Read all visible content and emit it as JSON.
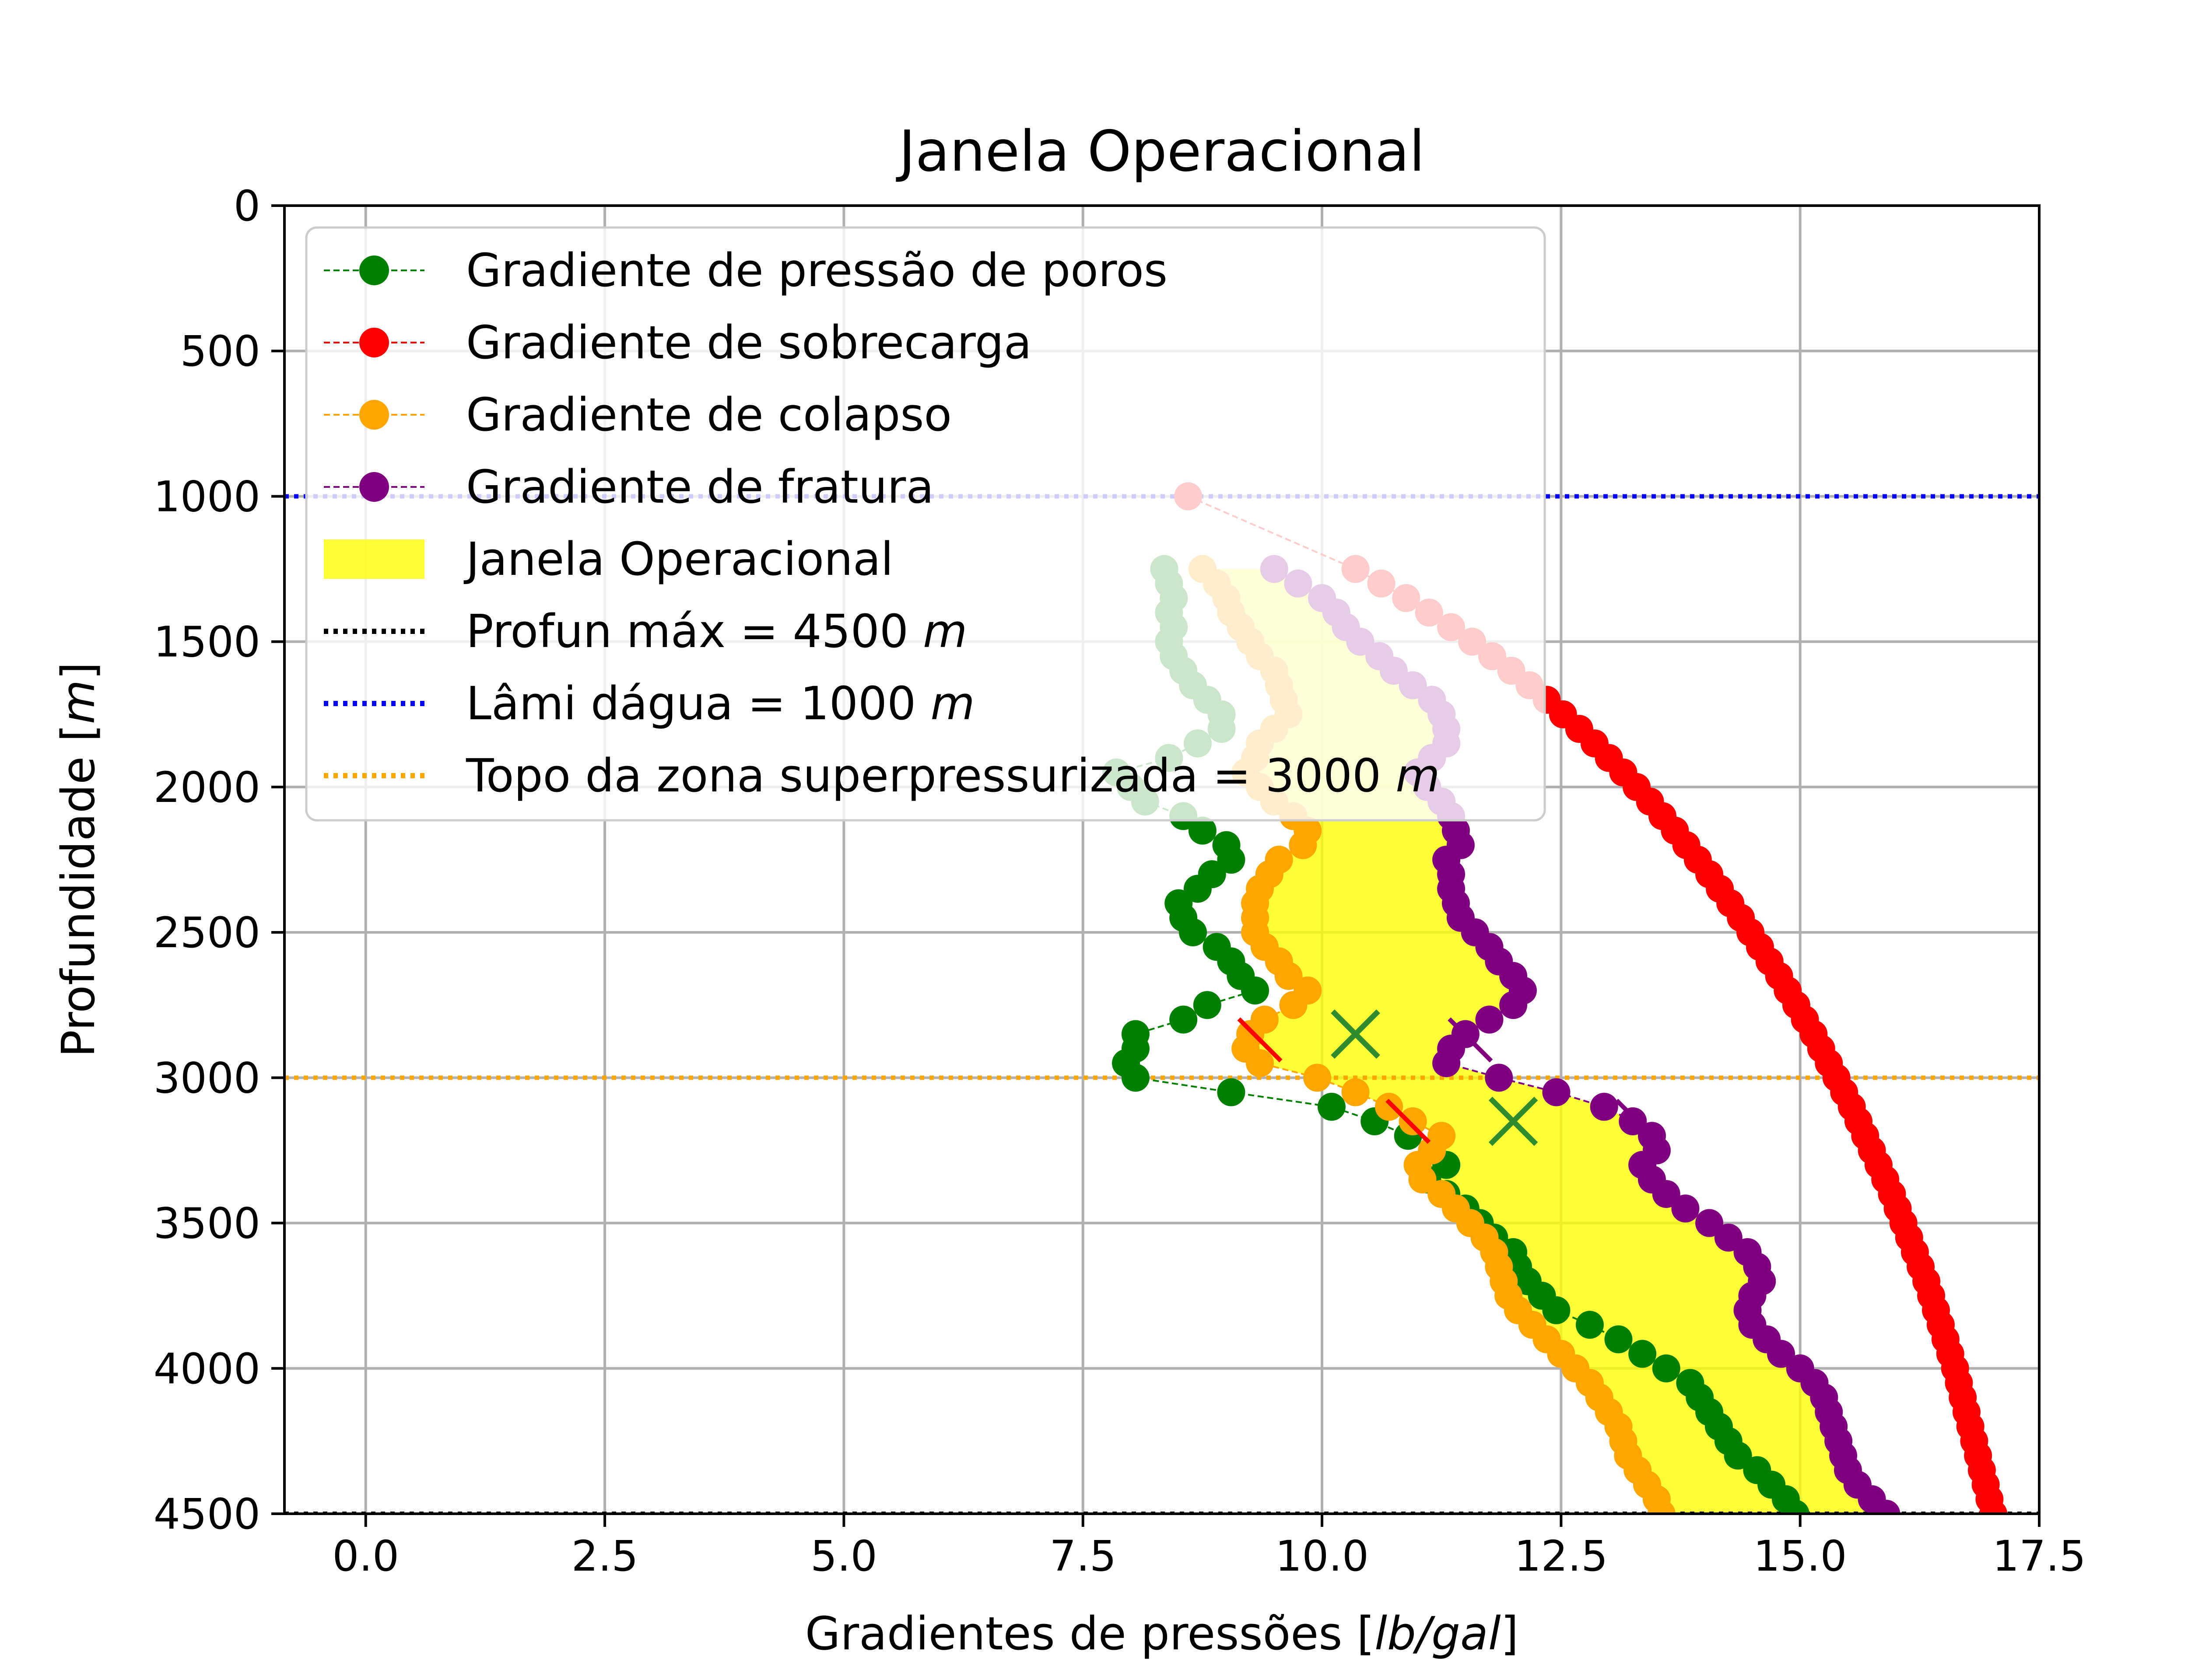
{
  "chart_data": {
    "type": "line",
    "title": "Janela Operacional",
    "xlabel_parts": [
      "Gradientes de pressões [",
      "lb/gal",
      "]"
    ],
    "ylabel_parts": [
      "Profundidade [",
      "m",
      "]"
    ],
    "xlim": [
      -0.85,
      17.5
    ],
    "ylim": [
      4500,
      0
    ],
    "y_inverted": true,
    "xticks": [
      {
        "value": 0,
        "label": "0.0"
      },
      {
        "value": 2.5,
        "label": "2.5"
      },
      {
        "value": 5,
        "label": "5.0"
      },
      {
        "value": 7.5,
        "label": "7.5"
      },
      {
        "value": 10,
        "label": "10.0"
      },
      {
        "value": 12.5,
        "label": "12.5"
      },
      {
        "value": 15,
        "label": "15.0"
      },
      {
        "value": 17.5,
        "label": "17.5"
      }
    ],
    "yticks": [
      {
        "value": 0,
        "label": "0"
      },
      {
        "value": 500,
        "label": "500"
      },
      {
        "value": 1000,
        "label": "1000"
      },
      {
        "value": 1500,
        "label": "1500"
      },
      {
        "value": 2000,
        "label": "2000"
      },
      {
        "value": 2500,
        "label": "2500"
      },
      {
        "value": 3000,
        "label": "3000"
      },
      {
        "value": 3500,
        "label": "3500"
      },
      {
        "value": 4000,
        "label": "4000"
      },
      {
        "value": 4500,
        "label": "4500"
      }
    ],
    "grid": true,
    "legend_position": "upper-left",
    "series": [
      {
        "name": "Gradiente de pressão de poros",
        "color": "#008000",
        "points": [
          [
            8.35,
            1250
          ],
          [
            8.4,
            1300
          ],
          [
            8.45,
            1350
          ],
          [
            8.4,
            1400
          ],
          [
            8.45,
            1450
          ],
          [
            8.4,
            1500
          ],
          [
            8.45,
            1550
          ],
          [
            8.55,
            1600
          ],
          [
            8.65,
            1650
          ],
          [
            8.8,
            1700
          ],
          [
            8.95,
            1750
          ],
          [
            8.95,
            1800
          ],
          [
            8.7,
            1850
          ],
          [
            8.4,
            1900
          ],
          [
            7.85,
            1950
          ],
          [
            8.0,
            2000
          ],
          [
            8.15,
            2050
          ],
          [
            8.55,
            2100
          ],
          [
            8.75,
            2150
          ],
          [
            9.0,
            2200
          ],
          [
            9.05,
            2250
          ],
          [
            8.85,
            2300
          ],
          [
            8.7,
            2350
          ],
          [
            8.5,
            2400
          ],
          [
            8.55,
            2450
          ],
          [
            8.65,
            2500
          ],
          [
            8.9,
            2550
          ],
          [
            9.05,
            2600
          ],
          [
            9.15,
            2650
          ],
          [
            9.3,
            2700
          ],
          [
            8.8,
            2750
          ],
          [
            8.55,
            2800
          ],
          [
            8.05,
            2850
          ],
          [
            8.05,
            2900
          ],
          [
            7.95,
            2950
          ],
          [
            8.05,
            3000
          ],
          [
            9.05,
            3050
          ],
          [
            10.1,
            3100
          ],
          [
            10.55,
            3150
          ],
          [
            10.9,
            3200
          ],
          [
            11.15,
            3250
          ],
          [
            11.3,
            3300
          ],
          [
            11.1,
            3350
          ],
          [
            11.3,
            3400
          ],
          [
            11.5,
            3450
          ],
          [
            11.65,
            3500
          ],
          [
            11.8,
            3550
          ],
          [
            12.0,
            3600
          ],
          [
            12.05,
            3650
          ],
          [
            12.15,
            3700
          ],
          [
            12.3,
            3750
          ],
          [
            12.45,
            3800
          ],
          [
            12.8,
            3850
          ],
          [
            13.1,
            3900
          ],
          [
            13.35,
            3950
          ],
          [
            13.6,
            4000
          ],
          [
            13.85,
            4050
          ],
          [
            13.95,
            4100
          ],
          [
            14.05,
            4150
          ],
          [
            14.15,
            4200
          ],
          [
            14.25,
            4250
          ],
          [
            14.35,
            4300
          ],
          [
            14.55,
            4350
          ],
          [
            14.7,
            4400
          ],
          [
            14.85,
            4450
          ],
          [
            14.95,
            4500
          ]
        ]
      },
      {
        "name": "Gradiente de sobrecarga",
        "color": "#ff0000",
        "points": [
          [
            8.6,
            1000
          ],
          [
            10.35,
            1250
          ],
          [
            10.62,
            1300
          ],
          [
            10.88,
            1350
          ],
          [
            11.12,
            1400
          ],
          [
            11.35,
            1450
          ],
          [
            11.57,
            1500
          ],
          [
            11.78,
            1550
          ],
          [
            11.98,
            1600
          ],
          [
            12.17,
            1650
          ],
          [
            12.35,
            1700
          ],
          [
            12.52,
            1750
          ],
          [
            12.69,
            1800
          ],
          [
            12.85,
            1850
          ],
          [
            13.0,
            1900
          ],
          [
            13.15,
            1950
          ],
          [
            13.29,
            2000
          ],
          [
            13.43,
            2050
          ],
          [
            13.56,
            2100
          ],
          [
            13.69,
            2150
          ],
          [
            13.81,
            2200
          ],
          [
            13.93,
            2250
          ],
          [
            14.05,
            2300
          ],
          [
            14.16,
            2350
          ],
          [
            14.27,
            2400
          ],
          [
            14.38,
            2450
          ],
          [
            14.48,
            2500
          ],
          [
            14.58,
            2550
          ],
          [
            14.68,
            2600
          ],
          [
            14.78,
            2650
          ],
          [
            14.87,
            2700
          ],
          [
            14.96,
            2750
          ],
          [
            15.05,
            2800
          ],
          [
            15.14,
            2850
          ],
          [
            15.22,
            2900
          ],
          [
            15.3,
            2950
          ],
          [
            15.38,
            3000
          ],
          [
            15.46,
            3050
          ],
          [
            15.54,
            3100
          ],
          [
            15.61,
            3150
          ],
          [
            15.68,
            3200
          ],
          [
            15.75,
            3250
          ],
          [
            15.82,
            3300
          ],
          [
            15.89,
            3350
          ],
          [
            15.96,
            3400
          ],
          [
            16.02,
            3450
          ],
          [
            16.08,
            3500
          ],
          [
            16.14,
            3550
          ],
          [
            16.2,
            3600
          ],
          [
            16.26,
            3650
          ],
          [
            16.32,
            3700
          ],
          [
            16.37,
            3750
          ],
          [
            16.42,
            3800
          ],
          [
            16.47,
            3850
          ],
          [
            16.52,
            3900
          ],
          [
            16.57,
            3950
          ],
          [
            16.62,
            4000
          ],
          [
            16.66,
            4050
          ],
          [
            16.7,
            4100
          ],
          [
            16.74,
            4150
          ],
          [
            16.78,
            4200
          ],
          [
            16.82,
            4250
          ],
          [
            16.86,
            4300
          ],
          [
            16.9,
            4350
          ],
          [
            16.94,
            4400
          ],
          [
            16.98,
            4450
          ],
          [
            17.02,
            4500
          ]
        ]
      },
      {
        "name": "Gradiente de colapso",
        "color": "#ffa500",
        "points": [
          [
            8.75,
            1250
          ],
          [
            8.9,
            1300
          ],
          [
            9.0,
            1350
          ],
          [
            9.05,
            1400
          ],
          [
            9.15,
            1450
          ],
          [
            9.25,
            1500
          ],
          [
            9.35,
            1550
          ],
          [
            9.5,
            1600
          ],
          [
            9.55,
            1650
          ],
          [
            9.6,
            1700
          ],
          [
            9.65,
            1750
          ],
          [
            9.5,
            1800
          ],
          [
            9.35,
            1850
          ],
          [
            9.3,
            1900
          ],
          [
            9.2,
            1950
          ],
          [
            9.35,
            2000
          ],
          [
            9.5,
            2050
          ],
          [
            9.7,
            2100
          ],
          [
            9.85,
            2150
          ],
          [
            9.8,
            2200
          ],
          [
            9.55,
            2250
          ],
          [
            9.45,
            2300
          ],
          [
            9.35,
            2350
          ],
          [
            9.3,
            2400
          ],
          [
            9.3,
            2450
          ],
          [
            9.3,
            2500
          ],
          [
            9.4,
            2550
          ],
          [
            9.55,
            2600
          ],
          [
            9.65,
            2650
          ],
          [
            9.85,
            2700
          ],
          [
            9.7,
            2750
          ],
          [
            9.4,
            2800
          ],
          [
            9.25,
            2850
          ],
          [
            9.2,
            2900
          ],
          [
            9.35,
            2950
          ],
          [
            9.95,
            3000
          ],
          [
            10.35,
            3050
          ],
          [
            10.7,
            3100
          ],
          [
            10.95,
            3150
          ],
          [
            11.25,
            3200
          ],
          [
            11.15,
            3250
          ],
          [
            11.0,
            3300
          ],
          [
            11.05,
            3350
          ],
          [
            11.25,
            3400
          ],
          [
            11.4,
            3450
          ],
          [
            11.55,
            3500
          ],
          [
            11.7,
            3550
          ],
          [
            11.8,
            3600
          ],
          [
            11.85,
            3650
          ],
          [
            11.9,
            3700
          ],
          [
            11.95,
            3750
          ],
          [
            12.05,
            3800
          ],
          [
            12.2,
            3850
          ],
          [
            12.35,
            3900
          ],
          [
            12.5,
            3950
          ],
          [
            12.65,
            4000
          ],
          [
            12.8,
            4050
          ],
          [
            12.9,
            4100
          ],
          [
            13.0,
            4150
          ],
          [
            13.1,
            4200
          ],
          [
            13.15,
            4250
          ],
          [
            13.2,
            4300
          ],
          [
            13.3,
            4350
          ],
          [
            13.4,
            4400
          ],
          [
            13.5,
            4450
          ],
          [
            13.55,
            4500
          ]
        ]
      },
      {
        "name": "Gradiente de fratura",
        "color": "#800080",
        "points": [
          [
            9.5,
            1250
          ],
          [
            9.75,
            1300
          ],
          [
            10.0,
            1350
          ],
          [
            10.15,
            1400
          ],
          [
            10.25,
            1450
          ],
          [
            10.4,
            1500
          ],
          [
            10.6,
            1550
          ],
          [
            10.75,
            1600
          ],
          [
            10.95,
            1650
          ],
          [
            11.15,
            1700
          ],
          [
            11.25,
            1750
          ],
          [
            11.3,
            1800
          ],
          [
            11.3,
            1850
          ],
          [
            11.15,
            1900
          ],
          [
            11.0,
            1950
          ],
          [
            11.1,
            2000
          ],
          [
            11.25,
            2050
          ],
          [
            11.35,
            2100
          ],
          [
            11.4,
            2150
          ],
          [
            11.45,
            2200
          ],
          [
            11.3,
            2250
          ],
          [
            11.35,
            2300
          ],
          [
            11.35,
            2350
          ],
          [
            11.4,
            2400
          ],
          [
            11.45,
            2450
          ],
          [
            11.6,
            2500
          ],
          [
            11.75,
            2550
          ],
          [
            11.85,
            2600
          ],
          [
            12.0,
            2650
          ],
          [
            12.1,
            2700
          ],
          [
            12.0,
            2750
          ],
          [
            11.75,
            2800
          ],
          [
            11.5,
            2850
          ],
          [
            11.35,
            2900
          ],
          [
            11.3,
            2950
          ],
          [
            11.85,
            3000
          ],
          [
            12.45,
            3050
          ],
          [
            12.95,
            3100
          ],
          [
            13.25,
            3150
          ],
          [
            13.45,
            3200
          ],
          [
            13.5,
            3250
          ],
          [
            13.35,
            3300
          ],
          [
            13.45,
            3350
          ],
          [
            13.6,
            3400
          ],
          [
            13.8,
            3450
          ],
          [
            14.05,
            3500
          ],
          [
            14.25,
            3550
          ],
          [
            14.45,
            3600
          ],
          [
            14.55,
            3650
          ],
          [
            14.6,
            3700
          ],
          [
            14.5,
            3750
          ],
          [
            14.45,
            3800
          ],
          [
            14.5,
            3850
          ],
          [
            14.65,
            3900
          ],
          [
            14.8,
            3950
          ],
          [
            15.0,
            4000
          ],
          [
            15.15,
            4050
          ],
          [
            15.25,
            4100
          ],
          [
            15.3,
            4150
          ],
          [
            15.35,
            4200
          ],
          [
            15.4,
            4250
          ],
          [
            15.45,
            4300
          ],
          [
            15.5,
            4350
          ],
          [
            15.6,
            4400
          ],
          [
            15.75,
            4450
          ],
          [
            15.9,
            4500
          ]
        ]
      }
    ],
    "fill": {
      "name": "Janela Operacional",
      "color": "#ffff00",
      "lower_series": "Gradiente de colapso",
      "upper_series": "Gradiente de fratura"
    },
    "hlines": [
      {
        "name_parts": [
          "Profun máx = 4500 ",
          "m"
        ],
        "y": 4500,
        "color": "#000000"
      },
      {
        "name_parts": [
          "Lâmi dágua = 1000 ",
          "m"
        ],
        "y": 1000,
        "color": "#0000ff"
      },
      {
        "name_parts": [
          "Topo da zona superpressurizada = 3000 ",
          "m"
        ],
        "y": 3000,
        "color": "#ffa500"
      }
    ],
    "markers": [
      {
        "x": 10.35,
        "y": 2850,
        "color": "#0b5394"
      },
      {
        "x": 10.35,
        "y": 2850,
        "color": "#2e8b2e"
      },
      {
        "x": 12.0,
        "y": 3150,
        "color": "#2e8b2e"
      }
    ],
    "ticks_marks": [
      {
        "x": 9.35,
        "y": 2870,
        "color": "#ff0000"
      },
      {
        "x": 10.9,
        "y": 3150,
        "color": "#ff0000"
      },
      {
        "x": 11.55,
        "y": 2870,
        "color": "#800080"
      },
      {
        "x": 13.3,
        "y": 3150,
        "color": "#800080"
      }
    ]
  }
}
